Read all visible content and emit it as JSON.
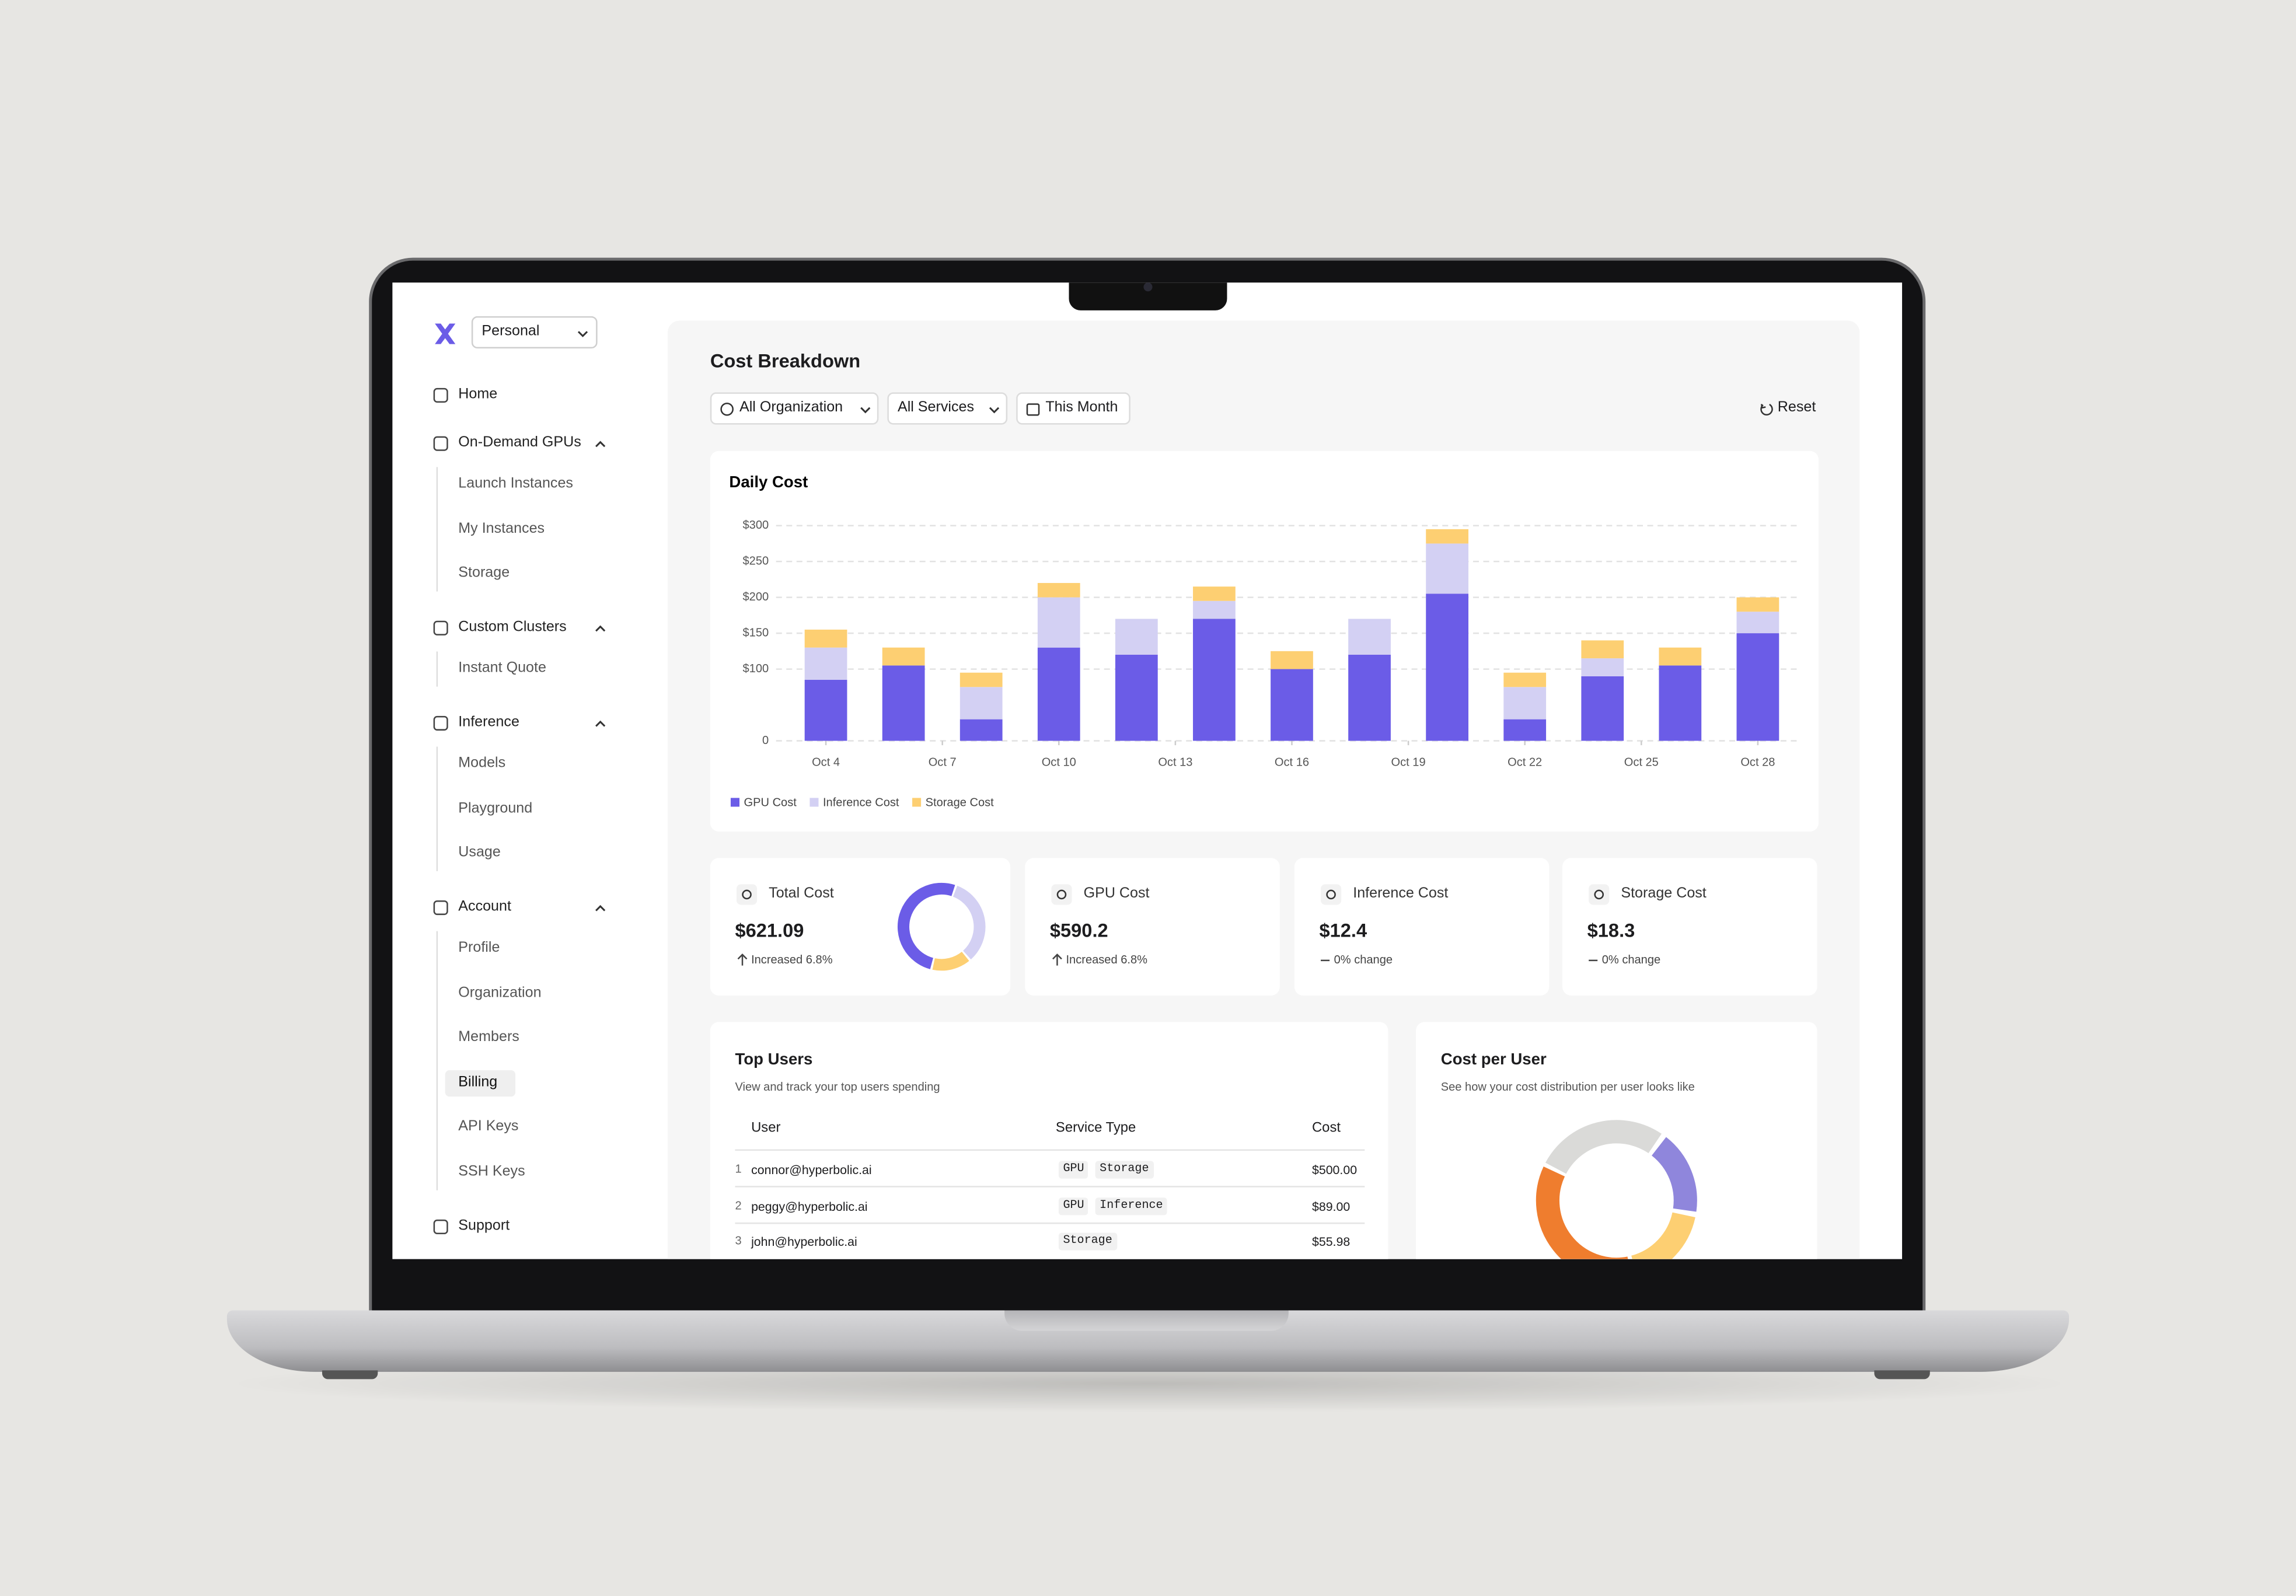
{
  "sidebar": {
    "workspace": "Personal",
    "nav": [
      {
        "label": "Home"
      },
      {
        "label": "On-Demand GPUs",
        "items": [
          {
            "label": "Launch Instances"
          },
          {
            "label": "My Instances"
          },
          {
            "label": "Storage"
          }
        ]
      },
      {
        "label": "Custom Clusters",
        "items": [
          {
            "label": "Instant Quote"
          }
        ]
      },
      {
        "label": "Inference",
        "items": [
          {
            "label": "Models"
          },
          {
            "label": "Playground"
          },
          {
            "label": "Usage"
          }
        ]
      },
      {
        "label": "Account",
        "items": [
          {
            "label": "Profile"
          },
          {
            "label": "Organization"
          },
          {
            "label": "Members"
          },
          {
            "label": "Billing",
            "active": true
          },
          {
            "label": "API Keys"
          },
          {
            "label": "SSH Keys"
          }
        ]
      },
      {
        "label": "Support"
      }
    ]
  },
  "header": {
    "title": "Cost Breakdown",
    "filters": [
      "All Organization",
      "All Services",
      "This Month"
    ],
    "reset": "Reset"
  },
  "chart_data": {
    "type": "bar",
    "stacked": true,
    "title": "Daily Cost",
    "x": [
      4,
      6,
      8,
      10,
      12,
      14,
      16,
      18,
      20,
      22,
      24,
      26,
      28
    ],
    "xlim": [
      3,
      29
    ],
    "xticks": [
      {
        "value": 4,
        "label": "Oct 4"
      },
      {
        "value": 7,
        "label": "Oct 7"
      },
      {
        "value": 10,
        "label": "Oct 10"
      },
      {
        "value": 13,
        "label": "Oct 13"
      },
      {
        "value": 16,
        "label": "Oct 16"
      },
      {
        "value": 19,
        "label": "Oct 19"
      },
      {
        "value": 22,
        "label": "Oct 22"
      },
      {
        "value": 25,
        "label": "Oct 25"
      },
      {
        "value": 28,
        "label": "Oct 28"
      }
    ],
    "ylim": [
      0,
      300
    ],
    "yticks": [
      0,
      {
        "value": 100,
        "label": "$100"
      },
      {
        "value": 150,
        "label": "$150"
      },
      {
        "value": 200,
        "label": "$200"
      },
      {
        "value": 250,
        "label": "$250"
      },
      {
        "value": 300,
        "label": "$300"
      }
    ],
    "grid": true,
    "series": [
      {
        "name": "GPU Cost",
        "color": "#6b5ce7",
        "values": [
          85,
          105,
          30,
          130,
          120,
          170,
          100,
          120,
          205,
          30,
          90,
          105,
          150
        ]
      },
      {
        "name": "Inference Cost",
        "color": "#d3d0f3",
        "values": [
          45,
          0,
          45,
          70,
          50,
          25,
          0,
          50,
          70,
          45,
          25,
          0,
          30
        ]
      },
      {
        "name": "Storage Cost",
        "color": "#fdcf72",
        "values": [
          25,
          25,
          20,
          20,
          0,
          20,
          25,
          0,
          20,
          20,
          25,
          25,
          20
        ]
      }
    ]
  },
  "stats": [
    {
      "label": "Total Cost",
      "value": "$621.09",
      "change": "Increased 6.8%",
      "trend": "up"
    },
    {
      "label": "GPU Cost",
      "value": "$590.2",
      "change": "Increased 6.8%",
      "trend": "up"
    },
    {
      "label": "Inference Cost",
      "value": "$12.4",
      "change": "0% change",
      "trend": "flat"
    },
    {
      "label": "Storage Cost",
      "value": "$18.3",
      "change": "0% change",
      "trend": "flat"
    }
  ],
  "top_users": {
    "title": "Top Users",
    "subtitle": "View and track your top users spending",
    "columns": [
      "User",
      "Service Type",
      "Cost"
    ],
    "rows": [
      {
        "rank": 1,
        "user": "connor@hyperbolic.ai",
        "services": [
          "GPU",
          "Storage"
        ],
        "cost": "$500.00"
      },
      {
        "rank": 2,
        "user": "peggy@hyperbolic.ai",
        "services": [
          "GPU",
          "Inference"
        ],
        "cost": "$89.00"
      },
      {
        "rank": 3,
        "user": "john@hyperbolic.ai",
        "services": [
          "Storage"
        ],
        "cost": "$55.98"
      }
    ]
  },
  "cost_per_user": {
    "title": "Cost per User",
    "subtitle": "See how your cost distribution per user looks like"
  }
}
